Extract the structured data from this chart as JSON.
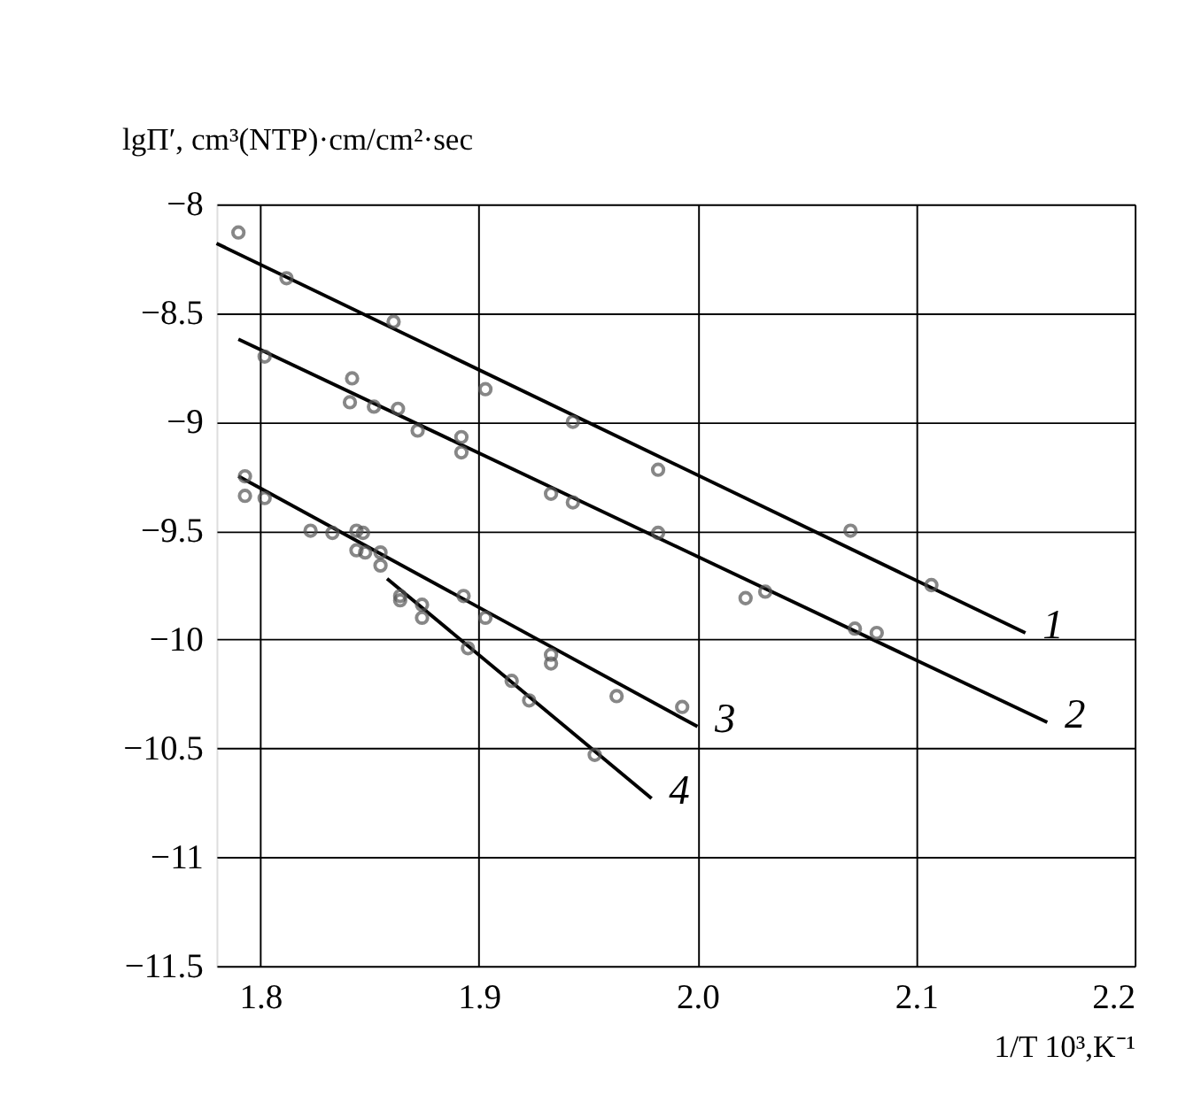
{
  "chart_data": {
    "type": "scatter",
    "xlabel": "1/T 10³,K⁻¹",
    "ylabel": "lgΠ′, cm³(NTP)·cm/cm²·sec",
    "xlim": [
      1.78,
      2.2
    ],
    "xticks": [
      1.8,
      1.9,
      {
        "value": 2.0,
        "label": "2.0"
      },
      2.1,
      2.2
    ],
    "ylim": [
      -11.5,
      -8
    ],
    "yticks": [
      -11.5,
      -11,
      -10.5,
      -10,
      -9.5,
      -9,
      -8.5,
      -8
    ],
    "grid": true,
    "marker": "circle",
    "series": [
      {
        "type": "line",
        "name": "1",
        "color": "#000000",
        "marker": "none",
        "x": [
          1.78,
          2.15
        ],
        "values": [
          -8.18,
          -9.97
        ]
      },
      {
        "type": "line",
        "name": "2",
        "color": "#000000",
        "marker": "none",
        "x": [
          1.79,
          2.16
        ],
        "values": [
          -8.62,
          -10.38
        ]
      },
      {
        "type": "line",
        "name": "3",
        "color": "#000000",
        "marker": "none",
        "x": [
          1.79,
          2.0
        ],
        "values": [
          -9.25,
          -10.4
        ]
      },
      {
        "type": "line",
        "name": "4",
        "color": "#000000",
        "marker": "none",
        "x": [
          1.858,
          1.979
        ],
        "values": [
          -9.72,
          -10.73
        ]
      },
      {
        "color": "#555555",
        "x": [
          1.79,
          1.812,
          1.861,
          1.903,
          1.943,
          1.982,
          2.07,
          2.107
        ],
        "values": [
          -8.13,
          -8.34,
          -8.54,
          -8.85,
          -9.0,
          -9.22,
          -9.5,
          -9.75
        ]
      },
      {
        "color": "#555555",
        "x": [
          1.802,
          1.842,
          1.841,
          1.852,
          1.863,
          1.872,
          1.892,
          1.892,
          1.933,
          1.943,
          1.982,
          2.022,
          2.031,
          2.072,
          2.082
        ],
        "values": [
          -8.7,
          -8.8,
          -8.91,
          -8.93,
          -8.94,
          -9.04,
          -9.07,
          -9.14,
          -9.33,
          -9.37,
          -9.51,
          -9.81,
          -9.78,
          -9.95,
          -9.97
        ]
      },
      {
        "color": "#555555",
        "x": [
          1.793,
          1.793,
          1.802,
          1.823,
          1.833,
          1.844,
          1.847,
          1.844,
          1.848,
          1.855,
          1.855,
          1.893,
          1.903,
          1.933,
          1.933,
          1.963,
          1.993
        ],
        "values": [
          -9.25,
          -9.34,
          -9.35,
          -9.5,
          -9.51,
          -9.5,
          -9.51,
          -9.59,
          -9.6,
          -9.6,
          -9.66,
          -9.8,
          -9.9,
          -10.07,
          -10.11,
          -10.26,
          -10.31
        ]
      },
      {
        "color": "#555555",
        "x": [
          1.864,
          1.864,
          1.874,
          1.874,
          1.895,
          1.915,
          1.923,
          1.953
        ],
        "values": [
          -9.8,
          -9.82,
          -9.84,
          -9.9,
          -10.04,
          -10.19,
          -10.28,
          -10.53
        ]
      }
    ]
  }
}
